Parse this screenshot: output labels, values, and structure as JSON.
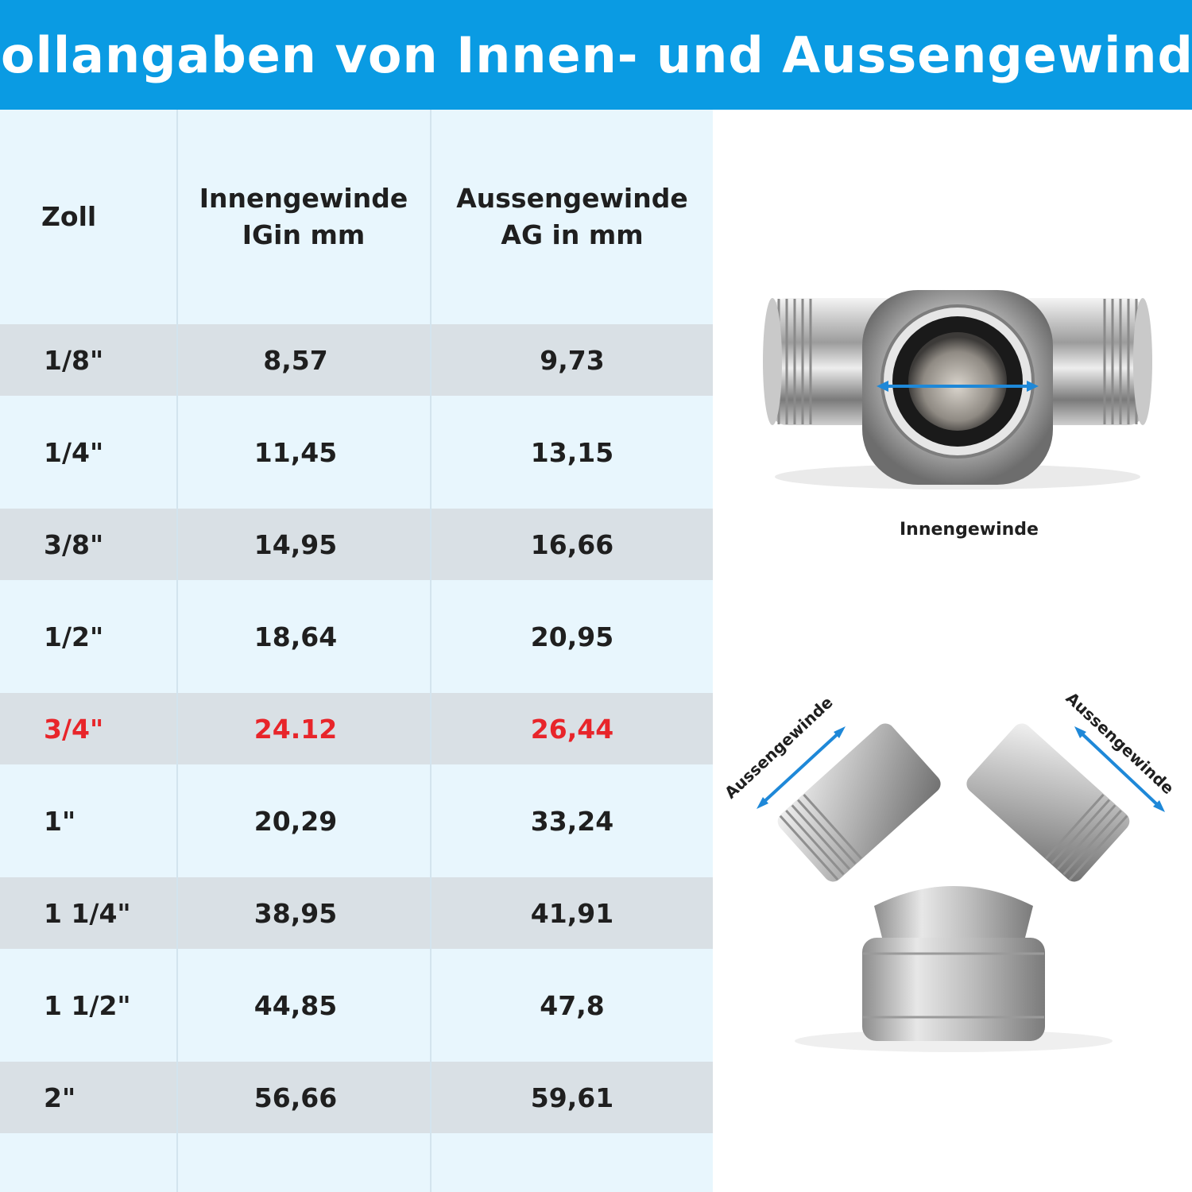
{
  "title": "Zollangaben von Innen- und Aussengewinde",
  "table": {
    "headers": {
      "col1": "Zoll",
      "col2_line1": "Innengewinde",
      "col2_line2": "IGin mm",
      "col3_line1": "Aussengewinde",
      "col3_line2": "AG in mm"
    },
    "rows": [
      {
        "zoll": "1/8\"",
        "ig": "8,57",
        "ag": "9,73"
      },
      {
        "zoll": "1/4\"",
        "ig": "11,45",
        "ag": "13,15"
      },
      {
        "zoll": "3/8\"",
        "ig": "14,95",
        "ag": "16,66"
      },
      {
        "zoll": "1/2\"",
        "ig": "18,64",
        "ag": "20,95"
      },
      {
        "zoll": "3/4\"",
        "ig": "24.12",
        "ag": "26,44",
        "highlight": true
      },
      {
        "zoll": "1\"",
        "ig": "20,29",
        "ag": "33,24"
      },
      {
        "zoll": "1 1/4\"",
        "ig": "38,95",
        "ag": "41,91"
      },
      {
        "zoll": "1 1/2\"",
        "ig": "44,85",
        "ag": "47,8"
      },
      {
        "zoll": "2\"",
        "ig": "56,66",
        "ag": "59,61"
      }
    ]
  },
  "illustrations": {
    "top_caption": "Innengewinde",
    "left_label": "Aussengewinde",
    "right_label": "Aussengewinde"
  },
  "colors": {
    "banner": "#0a9be3",
    "highlight_text": "#e8252a",
    "arrow": "#1e88d8"
  }
}
